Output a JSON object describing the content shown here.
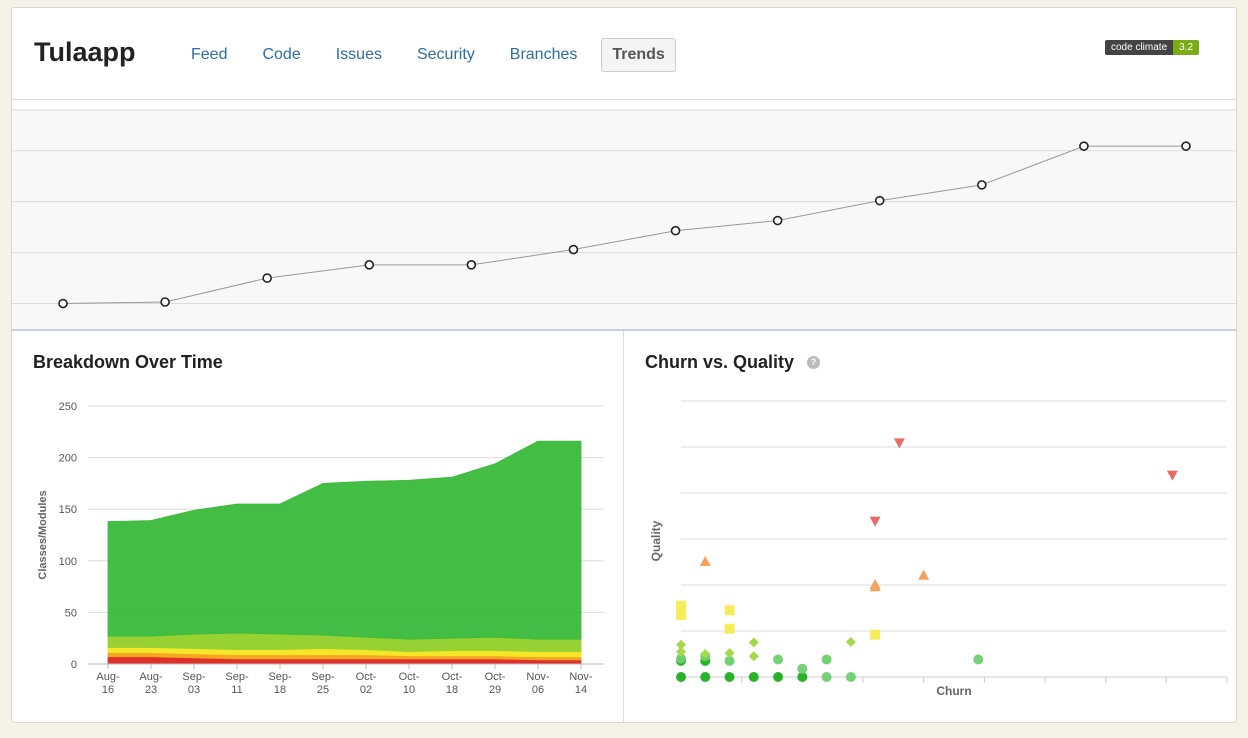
{
  "app": {
    "title": "Tulaapp"
  },
  "nav": {
    "items": [
      {
        "label": "Feed"
      },
      {
        "label": "Code"
      },
      {
        "label": "Issues"
      },
      {
        "label": "Security"
      },
      {
        "label": "Branches"
      },
      {
        "label": "Trends",
        "active": true
      }
    ]
  },
  "badge": {
    "label": "code climate",
    "value": "3.2",
    "color": "#7bab16"
  },
  "colors": {
    "A": "#3dbb3d",
    "B": "#97d132",
    "C": "#f5e629",
    "D": "#f5a623",
    "F": "#e0302a",
    "line": "#999999",
    "grid": "#dddddd"
  },
  "panels": {
    "breakdown": {
      "title": "Breakdown Over Time"
    },
    "churn": {
      "title": "Churn vs. Quality",
      "help": "?"
    }
  },
  "chart_data": [
    {
      "type": "line",
      "x": [
        1,
        2,
        3,
        4,
        5,
        6,
        7,
        8,
        9,
        10,
        11,
        12
      ],
      "values": [
        2.0,
        2.03,
        2.5,
        2.76,
        2.76,
        3.06,
        3.43,
        3.63,
        4.02,
        4.33,
        5.09,
        5.09
      ],
      "ylim": [
        1.5,
        5.8
      ],
      "grid": true
    },
    {
      "type": "area",
      "title": "Breakdown Over Time",
      "ylabel": "Classes/Modules",
      "categories": [
        "Aug-16",
        "Aug-23",
        "Sep-03",
        "Sep-11",
        "Sep-18",
        "Sep-25",
        "Oct-02",
        "Oct-10",
        "Oct-18",
        "Oct-29",
        "Nov-06",
        "Nov-14"
      ],
      "ylim": [
        0,
        250
      ],
      "yticks": [
        0,
        50,
        100,
        150,
        200,
        250
      ],
      "series": [
        {
          "key": "F",
          "values": [
            7,
            7,
            6,
            5,
            5,
            5,
            5,
            5,
            5,
            5,
            4,
            4
          ]
        },
        {
          "key": "D",
          "values": [
            4,
            4,
            4,
            4,
            4,
            4,
            4,
            3,
            3,
            3,
            3,
            3
          ]
        },
        {
          "key": "C",
          "values": [
            5,
            5,
            5,
            5,
            5,
            6,
            5,
            4,
            5,
            5,
            5,
            5
          ]
        },
        {
          "key": "B",
          "values": [
            11,
            11,
            14,
            16,
            15,
            13,
            12,
            12,
            12,
            13,
            12,
            12
          ]
        },
        {
          "key": "A",
          "values": [
            111,
            112,
            120,
            125,
            126,
            147,
            151,
            154,
            156,
            168,
            192,
            192
          ]
        }
      ],
      "grid": true
    },
    {
      "type": "scatter",
      "title": "Churn vs. Quality",
      "xlabel": "Churn",
      "ylabel": "Quality",
      "xlim": [
        0,
        9
      ],
      "ylim": [
        0,
        6
      ],
      "grid": true,
      "points": [
        {
          "x": 0,
          "y": 0,
          "g": "A"
        },
        {
          "x": 0.4,
          "y": 0,
          "g": "A"
        },
        {
          "x": 0.8,
          "y": 0,
          "g": "A"
        },
        {
          "x": 1.2,
          "y": 0,
          "g": "A"
        },
        {
          "x": 1.6,
          "y": 0,
          "g": "A"
        },
        {
          "x": 2.0,
          "y": 0,
          "g": "A"
        },
        {
          "x": 2.4,
          "y": 0,
          "g": "A2"
        },
        {
          "x": 2.8,
          "y": 0,
          "g": "A2"
        },
        {
          "x": 0,
          "y": 0.35,
          "g": "A"
        },
        {
          "x": 0.4,
          "y": 0.35,
          "g": "A"
        },
        {
          "x": 0.8,
          "y": 0.35,
          "g": "A2"
        },
        {
          "x": 0,
          "y": 0.4,
          "g": "A2"
        },
        {
          "x": 0.4,
          "y": 0.45,
          "g": "A2"
        },
        {
          "x": 1.6,
          "y": 0.38,
          "g": "A2"
        },
        {
          "x": 2.4,
          "y": 0.38,
          "g": "A2"
        },
        {
          "x": 2.0,
          "y": 0.18,
          "g": "A2"
        },
        {
          "x": 4.9,
          "y": 0.38,
          "g": "A2"
        },
        {
          "x": 0,
          "y": 0.55,
          "g": "B"
        },
        {
          "x": 0,
          "y": 0.7,
          "g": "B"
        },
        {
          "x": 0.4,
          "y": 0.5,
          "g": "B"
        },
        {
          "x": 0.8,
          "y": 0.52,
          "g": "B"
        },
        {
          "x": 1.2,
          "y": 0.45,
          "g": "B"
        },
        {
          "x": 1.2,
          "y": 0.75,
          "g": "B"
        },
        {
          "x": 2.8,
          "y": 0.76,
          "g": "B"
        },
        {
          "x": 0,
          "y": 1.35,
          "g": "C"
        },
        {
          "x": 0,
          "y": 1.55,
          "g": "C"
        },
        {
          "x": 0.8,
          "y": 1.05,
          "g": "C"
        },
        {
          "x": 0.8,
          "y": 1.45,
          "g": "C"
        },
        {
          "x": 3.2,
          "y": 0.92,
          "g": "C"
        },
        {
          "x": 0.4,
          "y": 2.5,
          "g": "D"
        },
        {
          "x": 3.2,
          "y": 2.0,
          "g": "D"
        },
        {
          "x": 3.2,
          "y": 1.95,
          "g": "D"
        },
        {
          "x": 4.0,
          "y": 2.2,
          "g": "D"
        },
        {
          "x": 3.2,
          "y": 3.4,
          "g": "F"
        },
        {
          "x": 3.6,
          "y": 5.1,
          "g": "F"
        },
        {
          "x": 8.1,
          "y": 4.4,
          "g": "F"
        }
      ]
    }
  ]
}
